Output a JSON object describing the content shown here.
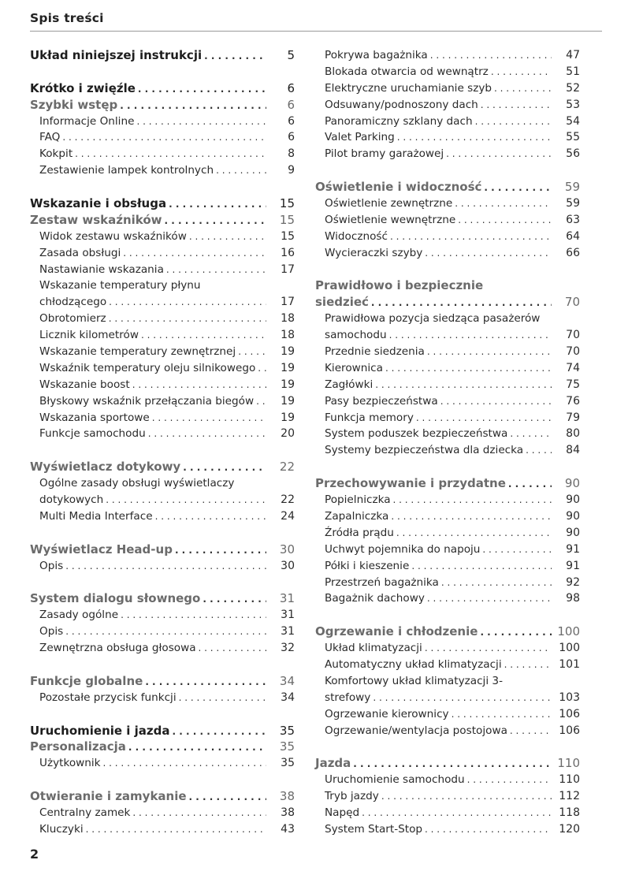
{
  "header": {
    "title": "Spis treści"
  },
  "footer": {
    "page_number": "2"
  },
  "colors": {
    "heading_dark": "#1e1e1e",
    "heading_gray": "#6b6b6b",
    "text": "#2a2a2a"
  },
  "columns": [
    [
      [
        {
          "level": "h",
          "title": "Układ niniejszej instrukcji",
          "page": "5"
        }
      ],
      [
        {
          "level": "h",
          "title": "Krótko i zwięźle",
          "page": "6"
        },
        {
          "level": "h",
          "gray": true,
          "title": "Szybki wstęp",
          "page": "6"
        },
        {
          "level": "i",
          "title": "Informacje Online",
          "page": "6"
        },
        {
          "level": "i",
          "title": "FAQ",
          "page": "6"
        },
        {
          "level": "i",
          "title": "Kokpit",
          "page": "8"
        },
        {
          "level": "i",
          "title": "Zestawienie lampek kontrolnych",
          "page": "9"
        }
      ],
      [
        {
          "level": "h",
          "title": "Wskazanie i obsługa",
          "page": "15"
        },
        {
          "level": "h",
          "gray": true,
          "title": "Zestaw wskaźników",
          "page": "15"
        },
        {
          "level": "i",
          "title": "Widok zestawu wskaźników",
          "page": "15"
        },
        {
          "level": "i",
          "title": "Zasada obsługi",
          "page": "16"
        },
        {
          "level": "i",
          "title": "Nastawianie wskazania",
          "page": "17"
        },
        {
          "level": "i",
          "first_line": "Wskazanie temperatury płynu",
          "title": "chłodzącego",
          "page": "17"
        },
        {
          "level": "i",
          "title": "Obrotomierz",
          "page": "18"
        },
        {
          "level": "i",
          "title": "Licznik kilometrów",
          "page": "18"
        },
        {
          "level": "i",
          "title": "Wskazanie temperatury zewnętrznej",
          "page": "19"
        },
        {
          "level": "i",
          "title": "Wskaźnik temperatury oleju silnikowego",
          "page": "19"
        },
        {
          "level": "i",
          "title": "Wskazanie boost",
          "page": "19"
        },
        {
          "level": "i",
          "title": "Błyskowy wskaźnik przełączania biegów",
          "page": "19"
        },
        {
          "level": "i",
          "title": "Wskazania sportowe",
          "page": "19"
        },
        {
          "level": "i",
          "title": "Funkcje samochodu",
          "page": "20"
        }
      ],
      [
        {
          "level": "h",
          "gray": true,
          "title": "Wyświetlacz dotykowy",
          "page": "22"
        },
        {
          "level": "i",
          "first_line": "Ogólne zasady obsługi wyświetlaczy",
          "title": "dotykowych",
          "page": "22"
        },
        {
          "level": "i",
          "title": "Multi Media Interface",
          "page": "24"
        }
      ],
      [
        {
          "level": "h",
          "gray": true,
          "title": "Wyświetlacz Head-up",
          "page": "30"
        },
        {
          "level": "i",
          "title": "Opis",
          "page": "30"
        }
      ],
      [
        {
          "level": "h",
          "gray": true,
          "title": "System dialogu słownego",
          "page": "31"
        },
        {
          "level": "i",
          "title": "Zasady ogólne",
          "page": "31"
        },
        {
          "level": "i",
          "title": "Opis",
          "page": "31"
        },
        {
          "level": "i",
          "title": "Zewnętrzna obsługa głosowa",
          "page": "32"
        }
      ],
      [
        {
          "level": "h",
          "gray": true,
          "title": "Funkcje globalne",
          "page": "34"
        },
        {
          "level": "i",
          "title": "Pozostałe przycisk funkcji",
          "page": "34"
        }
      ],
      [
        {
          "level": "h",
          "title": "Uruchomienie i jazda",
          "page": "35"
        },
        {
          "level": "h",
          "gray": true,
          "title": "Personalizacja",
          "page": "35"
        },
        {
          "level": "i",
          "title": "Użytkownik",
          "page": "35"
        }
      ],
      [
        {
          "level": "h",
          "gray": true,
          "title": "Otwieranie i zamykanie",
          "page": "38"
        },
        {
          "level": "i",
          "title": "Centralny zamek",
          "page": "38"
        },
        {
          "level": "i",
          "title": "Kluczyki",
          "page": "43"
        }
      ]
    ],
    [
      [
        {
          "level": "i",
          "title": "Pokrywa bagażnika",
          "page": "47"
        },
        {
          "level": "i",
          "title": "Blokada otwarcia od wewnątrz",
          "page": "51"
        },
        {
          "level": "i",
          "title": "Elektryczne uruchamianie szyb",
          "page": "52"
        },
        {
          "level": "i",
          "title": "Odsuwany/podnoszony dach",
          "page": "53"
        },
        {
          "level": "i",
          "title": "Panoramiczny szklany dach",
          "page": "54"
        },
        {
          "level": "i",
          "title": "Valet Parking",
          "page": "55"
        },
        {
          "level": "i",
          "title": "Pilot bramy garażowej",
          "page": "56"
        }
      ],
      [
        {
          "level": "h",
          "gray": true,
          "title": "Oświetlenie i widoczność",
          "page": "59"
        },
        {
          "level": "i",
          "title": "Oświetlenie zewnętrzne",
          "page": "59"
        },
        {
          "level": "i",
          "title": "Oświetlenie wewnętrzne",
          "page": "63"
        },
        {
          "level": "i",
          "title": "Widoczność",
          "page": "64"
        },
        {
          "level": "i",
          "title": "Wycieraczki szyby",
          "page": "66"
        }
      ],
      [
        {
          "level": "h",
          "gray": true,
          "first_line": "Prawidłowo i bezpiecznie",
          "title": "siedzieć",
          "page": "70"
        },
        {
          "level": "i",
          "first_line": "Prawidłowa pozycja siedząca pasażerów",
          "title": "samochodu",
          "page": "70"
        },
        {
          "level": "i",
          "title": "Przednie siedzenia",
          "page": "70"
        },
        {
          "level": "i",
          "title": "Kierownica",
          "page": "74"
        },
        {
          "level": "i",
          "title": "Zagłówki",
          "page": "75"
        },
        {
          "level": "i",
          "title": "Pasy bezpieczeństwa",
          "page": "76"
        },
        {
          "level": "i",
          "title": "Funkcja memory",
          "page": "79"
        },
        {
          "level": "i",
          "title": "System poduszek bezpieczeństwa",
          "page": "80"
        },
        {
          "level": "i",
          "title": "Systemy bezpieczeństwa dla dziecka",
          "page": "84"
        }
      ],
      [
        {
          "level": "h",
          "gray": true,
          "title": "Przechowywanie i przydatne",
          "page": "90"
        },
        {
          "level": "i",
          "title": "Popielniczka",
          "page": "90"
        },
        {
          "level": "i",
          "title": "Zapalniczka",
          "page": "90"
        },
        {
          "level": "i",
          "title": "Źródła prądu",
          "page": "90"
        },
        {
          "level": "i",
          "title": "Uchwyt pojemnika do napoju",
          "page": "91"
        },
        {
          "level": "i",
          "title": "Półki i kieszenie",
          "page": "91"
        },
        {
          "level": "i",
          "title": "Przestrzeń bagażnika",
          "page": "92"
        },
        {
          "level": "i",
          "title": "Bagażnik dachowy",
          "page": "98"
        }
      ],
      [
        {
          "level": "h",
          "gray": true,
          "title": "Ogrzewanie i chłodzenie",
          "page": "100"
        },
        {
          "level": "i",
          "title": "Układ klimatyzacji",
          "page": "100"
        },
        {
          "level": "i",
          "title": "Automatyczny układ klimatyzacji",
          "page": "101"
        },
        {
          "level": "i",
          "first_line": "Komfortowy układ klimatyzacji 3-",
          "title": "strefowy",
          "page": "103"
        },
        {
          "level": "i",
          "title": "Ogrzewanie kierownicy",
          "page": "106"
        },
        {
          "level": "i",
          "title": "Ogrzewanie/wentylacja postojowa",
          "page": "106"
        }
      ],
      [
        {
          "level": "h",
          "gray": true,
          "title": "Jazda",
          "page": "110"
        },
        {
          "level": "i",
          "title": "Uruchomienie samochodu",
          "page": "110"
        },
        {
          "level": "i",
          "title": "Tryb jazdy",
          "page": "112"
        },
        {
          "level": "i",
          "title": "Napęd",
          "page": "118"
        },
        {
          "level": "i",
          "title": "System Start-Stop",
          "page": "120"
        }
      ]
    ]
  ]
}
